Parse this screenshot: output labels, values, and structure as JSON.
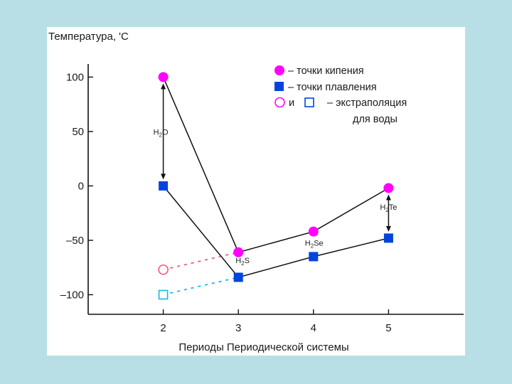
{
  "chart_data": {
    "type": "line",
    "ylabel": "Температура, 'С",
    "xlabel": "Периоды Периодической системы",
    "x": [
      2,
      3,
      4,
      5
    ],
    "xlim": [
      1,
      6
    ],
    "ylim": [
      -118,
      112
    ],
    "yticks": [
      100,
      50,
      0,
      -50,
      -100
    ],
    "ytick_labels": [
      "100",
      "50",
      "0",
      "–50",
      "–100"
    ],
    "xticks": [
      2,
      3,
      4,
      5
    ],
    "xtick_labels": [
      "2",
      "3",
      "4",
      "5"
    ],
    "grid": false,
    "legend_position": "top-right",
    "series": [
      {
        "name": "– точки кипения",
        "marker": "circle",
        "color": "#ff00ff",
        "points": [
          {
            "x": 2,
            "y": 100
          },
          {
            "x": 3,
            "y": -61
          },
          {
            "x": 4,
            "y": -42
          },
          {
            "x": 5,
            "y": -2
          }
        ]
      },
      {
        "name": "– точки плавления",
        "marker": "square",
        "color": "#0044dd",
        "points": [
          {
            "x": 2,
            "y": 0
          },
          {
            "x": 3,
            "y": -84
          },
          {
            "x": 4,
            "y": -65
          },
          {
            "x": 5,
            "y": -48
          }
        ]
      }
    ],
    "extrapolation": {
      "legend_prefix": "и",
      "legend_text": "– экстраполяция",
      "legend_text2": "для воды",
      "boiling": {
        "x": 2,
        "y": -77,
        "color": "#ff5577"
      },
      "melting": {
        "x": 2,
        "y": -100,
        "color": "#11bbdd"
      }
    },
    "annotations": [
      {
        "x": 2,
        "y": 47,
        "label": "H",
        "sub": "2",
        "tail": "O"
      },
      {
        "x": 3,
        "y": -71,
        "label": "H",
        "sub": "2",
        "tail": "S"
      },
      {
        "x": 4,
        "y": -55,
        "label": "H",
        "sub": "2",
        "tail": "Se"
      },
      {
        "x": 5,
        "y": -22,
        "label": "H",
        "sub": "2",
        "tail": "Te"
      }
    ]
  }
}
